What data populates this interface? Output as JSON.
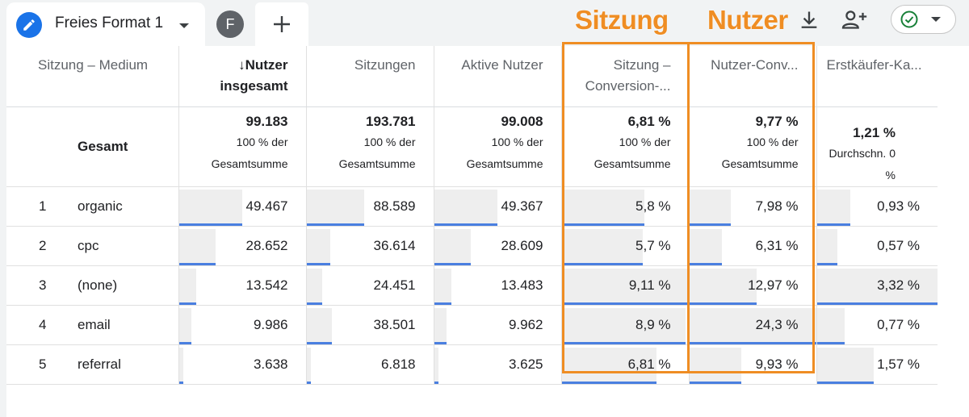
{
  "tabs": {
    "active_title": "Freies Format 1",
    "avatar_letter": "F"
  },
  "annotations": {
    "label_sessions": "Sitzung",
    "label_users": "Nutzer"
  },
  "table": {
    "dimension_header": "Sitzung – Medium",
    "columns": [
      {
        "label1": "↓Nutzer",
        "label2": "insgesamt",
        "sorted": true
      },
      {
        "label1": "Sitzungen",
        "label2": ""
      },
      {
        "label1": "Aktive Nutzer",
        "label2": ""
      },
      {
        "label1": "Sitzung –",
        "label2": "Conversion-..."
      },
      {
        "label1": "Nutzer-Conv...",
        "label2": ""
      },
      {
        "label1": "Erstkäufer-Ka...",
        "label2": ""
      }
    ],
    "total": {
      "label": "Gesamt",
      "values": [
        {
          "value": "99.183",
          "sub1": "100 % der",
          "sub2": "Gesamtsumme"
        },
        {
          "value": "193.781",
          "sub1": "100 % der",
          "sub2": "Gesamtsumme"
        },
        {
          "value": "99.008",
          "sub1": "100 % der",
          "sub2": "Gesamtsumme"
        },
        {
          "value": "6,81 %",
          "sub1": "100 % der",
          "sub2": "Gesamtsumme"
        },
        {
          "value": "9,77 %",
          "sub1": "100 % der",
          "sub2": "Gesamtsumme"
        },
        {
          "value": "1,21 %",
          "sub1": "Durchschn. 0 %",
          "sub2": ""
        }
      ]
    },
    "rows": [
      {
        "index": "1",
        "medium": "organic",
        "values": [
          "49.467",
          "88.589",
          "49.367",
          "5,8 %",
          "7,98 %",
          "0,93 %"
        ],
        "fractions": [
          0.499,
          0.457,
          0.499,
          0.65,
          0.33,
          0.28
        ]
      },
      {
        "index": "2",
        "medium": "cpc",
        "values": [
          "28.652",
          "36.614",
          "28.609",
          "5,7 %",
          "6,31 %",
          "0,57 %"
        ],
        "fractions": [
          0.289,
          0.189,
          0.289,
          0.64,
          0.26,
          0.17
        ]
      },
      {
        "index": "3",
        "medium": "(none)",
        "values": [
          "13.542",
          "24.451",
          "13.483",
          "9,11 %",
          "12,97 %",
          "3,32 %"
        ],
        "fractions": [
          0.137,
          0.126,
          0.136,
          1.0,
          0.53,
          1.0
        ]
      },
      {
        "index": "4",
        "medium": "email",
        "values": [
          "9.986",
          "38.501",
          "9.962",
          "8,9 %",
          "24,3 %",
          "0,77 %"
        ],
        "fractions": [
          0.101,
          0.199,
          0.101,
          0.98,
          1.0,
          0.23
        ]
      },
      {
        "index": "5",
        "medium": "referral",
        "values": [
          "3.638",
          "6.818",
          "3.625",
          "6,81 %",
          "9,93 %",
          "1,57 %"
        ],
        "fractions": [
          0.037,
          0.035,
          0.037,
          0.75,
          0.41,
          0.47
        ]
      }
    ]
  },
  "colors": {
    "accent": "#1a73e8",
    "bar_underline": "#4a7fe0",
    "annotation": "#ef8d23",
    "status_ok": "#188038"
  }
}
